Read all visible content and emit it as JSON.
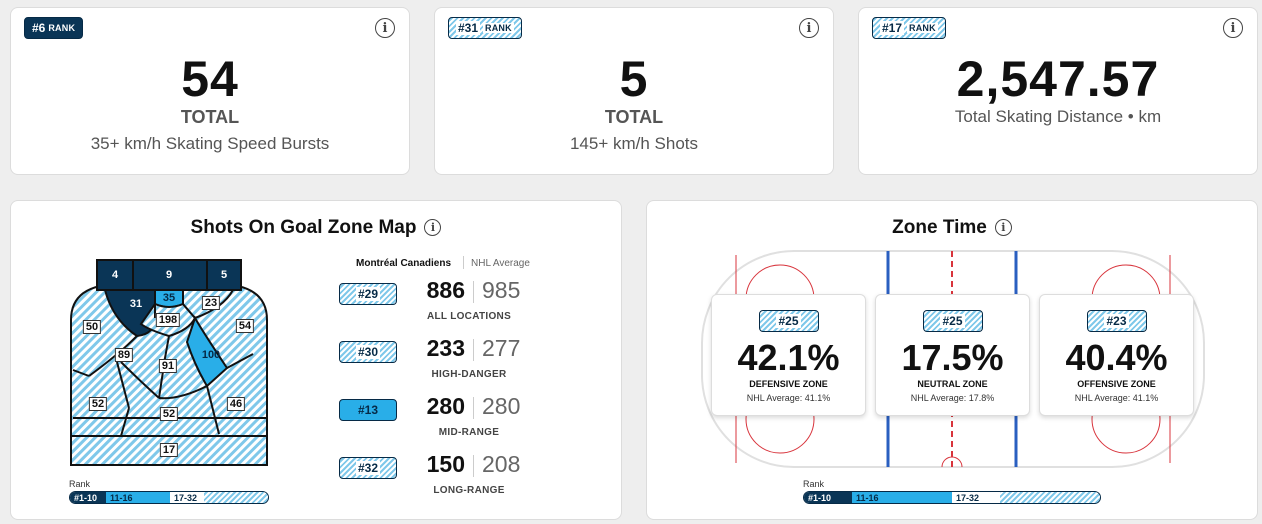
{
  "cards": [
    {
      "rank": "#6",
      "rank_suffix": "RANK",
      "style": "dark",
      "value": "54",
      "total_label": "TOTAL",
      "subtitle": "35+ km/h Skating Speed Bursts"
    },
    {
      "rank": "#31",
      "rank_suffix": "RANK",
      "style": "stripe",
      "value": "5",
      "total_label": "TOTAL",
      "subtitle": "145+ km/h Shots"
    },
    {
      "rank": "#17",
      "rank_suffix": "RANK",
      "style": "stripe",
      "value": "2,547.57",
      "subtitle": "Total Skating Distance • km"
    }
  ],
  "shots_section": {
    "title": "Shots On Goal Zone Map",
    "legend_team": "Montréal Canadiens",
    "legend_nhl": "NHL Average",
    "zones": [
      {
        "id": "top-left",
        "value": "4"
      },
      {
        "id": "top-center",
        "value": "9"
      },
      {
        "id": "top-right",
        "value": "5"
      },
      {
        "id": "crease-left",
        "value": "31"
      },
      {
        "id": "crease-center",
        "value": "35"
      },
      {
        "id": "crease-right",
        "value": "23"
      },
      {
        "id": "slot-high",
        "value": "198"
      },
      {
        "id": "left-wide",
        "value": "50"
      },
      {
        "id": "right-wide",
        "value": "54"
      },
      {
        "id": "left-mid",
        "value": "89"
      },
      {
        "id": "center-mid",
        "value": "91"
      },
      {
        "id": "right-mid",
        "value": "100"
      },
      {
        "id": "left-point",
        "value": "52"
      },
      {
        "id": "center-point",
        "value": "52"
      },
      {
        "id": "right-point",
        "value": "46"
      },
      {
        "id": "blue-line",
        "value": "17"
      }
    ],
    "stats": [
      {
        "rank": "#29",
        "style": "stripe",
        "team": "886",
        "nhl": "985",
        "label": "ALL LOCATIONS"
      },
      {
        "rank": "#30",
        "style": "stripe",
        "team": "233",
        "nhl": "277",
        "label": "HIGH-DANGER"
      },
      {
        "rank": "#13",
        "style": "mid",
        "team": "280",
        "nhl": "280",
        "label": "MID-RANGE"
      },
      {
        "rank": "#32",
        "style": "stripe",
        "team": "150",
        "nhl": "208",
        "label": "LONG-RANGE"
      }
    ]
  },
  "rank_legend": {
    "title": "Rank",
    "seg1": "#1-10",
    "seg2": "11-16",
    "seg3": "17-32"
  },
  "zone_time": {
    "title": "Zone Time",
    "zones": [
      {
        "rank": "#25",
        "pct": "42.1%",
        "label": "DEFENSIVE ZONE",
        "avg": "NHL Average: 41.1%"
      },
      {
        "rank": "#25",
        "pct": "17.5%",
        "label": "NEUTRAL ZONE",
        "avg": "NHL Average: 17.8%"
      },
      {
        "rank": "#23",
        "pct": "40.4%",
        "label": "OFFENSIVE ZONE",
        "avg": "NHL Average: 41.1%"
      }
    ]
  },
  "colors": {
    "dark": "#0a3556",
    "mid": "#29aee8",
    "stripe": "#7fc8ea",
    "blue_line": "#2a5fc0",
    "red_line": "#d8343c"
  },
  "icons": {
    "info": "info-icon"
  },
  "info_glyph": "i"
}
